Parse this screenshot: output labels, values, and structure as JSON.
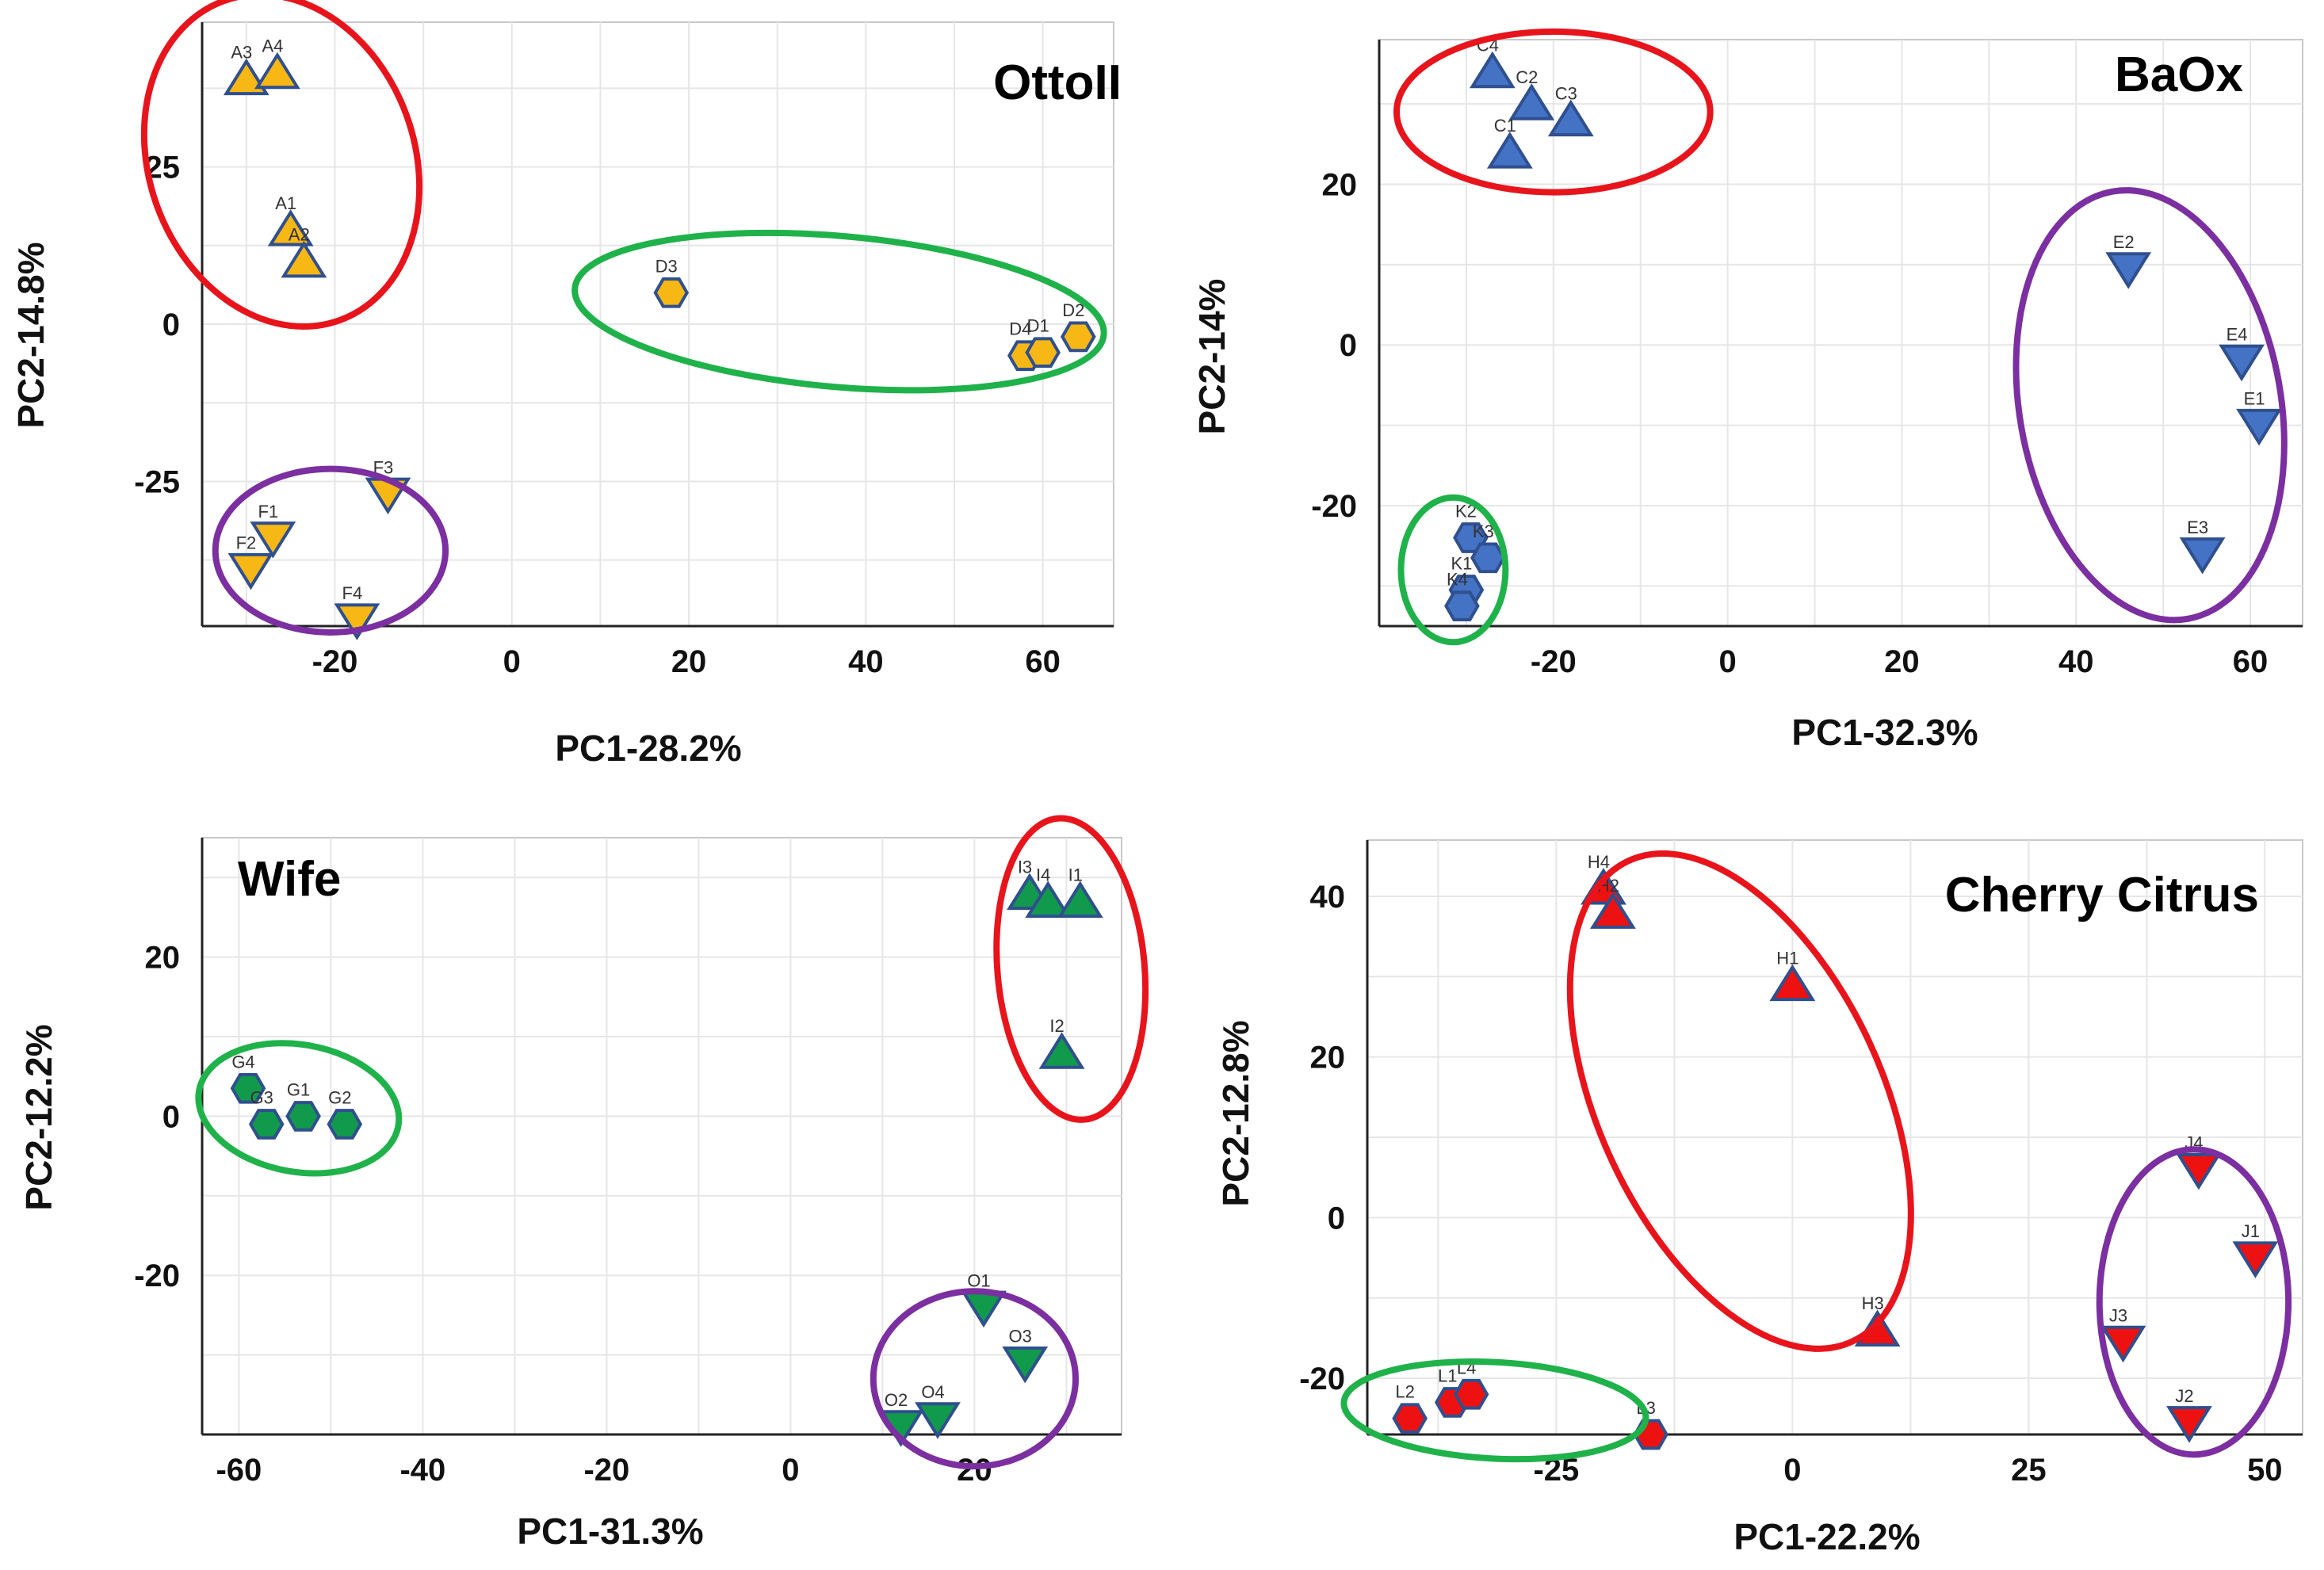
{
  "colors": {
    "red": "#e8141c",
    "green": "#20b24a",
    "purple": "#7b2fa0",
    "orange": "#f7b715",
    "blue": "#4472c4",
    "darkgreen": "#119a4c",
    "crimson": "#ee1111"
  },
  "chart_data": [
    {
      "type": "scatter",
      "title": "OttoII",
      "xlabel": "PC1-28.2%",
      "ylabel": "PC2-14.8%",
      "xlim": [
        -35,
        68
      ],
      "ylim": [
        -48,
        48
      ],
      "xticks": [
        -20,
        0,
        20,
        40,
        60
      ],
      "yticks": [
        25,
        0,
        -25
      ],
      "marker_color": "orange",
      "points": [
        {
          "label": "A3",
          "x": -30,
          "y": 39,
          "shape": "up"
        },
        {
          "label": "A4",
          "x": -26.5,
          "y": 40,
          "shape": "up"
        },
        {
          "label": "A1",
          "x": -25,
          "y": 15,
          "shape": "up"
        },
        {
          "label": "A2",
          "x": -23.5,
          "y": 10,
          "shape": "up"
        },
        {
          "label": "D3",
          "x": 18,
          "y": 5,
          "shape": "hex"
        },
        {
          "label": "D4",
          "x": 58,
          "y": -5,
          "shape": "hex"
        },
        {
          "label": "D1",
          "x": 60,
          "y": -4.5,
          "shape": "hex"
        },
        {
          "label": "D2",
          "x": 64,
          "y": -2,
          "shape": "hex"
        },
        {
          "label": "F1",
          "x": -27,
          "y": -34,
          "shape": "down"
        },
        {
          "label": "F2",
          "x": -29.5,
          "y": -39,
          "shape": "down"
        },
        {
          "label": "F3",
          "x": -14,
          "y": -27,
          "shape": "down"
        },
        {
          "label": "F4",
          "x": -17.5,
          "y": -47,
          "shape": "down"
        }
      ],
      "ellipses": [
        {
          "cx": -26,
          "cy": 26,
          "rx": 15,
          "ry": 27,
          "rot": -20,
          "color": "red"
        },
        {
          "cx": 37,
          "cy": 2,
          "rx": 30,
          "ry": 12,
          "rot": 5,
          "color": "green"
        },
        {
          "cx": -20.5,
          "cy": -36,
          "rx": 13,
          "ry": 13,
          "rot": 0,
          "color": "purple"
        }
      ]
    },
    {
      "type": "scatter",
      "title": "BaOx",
      "xlabel": "PC1-32.3%",
      "ylabel": "PC2-14%",
      "xlim": [
        -40,
        66
      ],
      "ylim": [
        -35,
        38
      ],
      "xticks": [
        -20,
        0,
        20,
        40,
        60
      ],
      "yticks": [
        20,
        0,
        -20
      ],
      "marker_color": "blue",
      "points": [
        {
          "label": "C4",
          "x": -27,
          "y": 34,
          "shape": "up"
        },
        {
          "label": "C2",
          "x": -22.5,
          "y": 30,
          "shape": "up"
        },
        {
          "label": "C3",
          "x": -18,
          "y": 28,
          "shape": "up"
        },
        {
          "label": "C1",
          "x": -25,
          "y": 24,
          "shape": "up"
        },
        {
          "label": "E2",
          "x": 46,
          "y": 9.5,
          "shape": "down"
        },
        {
          "label": "E4",
          "x": 59,
          "y": -2,
          "shape": "down"
        },
        {
          "label": "E1",
          "x": 61,
          "y": -10,
          "shape": "down"
        },
        {
          "label": "E3",
          "x": 54.5,
          "y": -26,
          "shape": "down"
        },
        {
          "label": "K2",
          "x": -29.5,
          "y": -24,
          "shape": "hex"
        },
        {
          "label": "K3",
          "x": -27.5,
          "y": -26.5,
          "shape": "hex"
        },
        {
          "label": "K1",
          "x": -30,
          "y": -30.5,
          "shape": "hex"
        },
        {
          "label": "K4",
          "x": -30.5,
          "y": -32.5,
          "shape": "hex"
        }
      ],
      "ellipses": [
        {
          "cx": -20,
          "cy": 29,
          "rx": 18,
          "ry": 10,
          "rot": 0,
          "color": "red"
        },
        {
          "cx": 48.5,
          "cy": -7.5,
          "rx": 15,
          "ry": 27,
          "rot": -10,
          "color": "purple"
        },
        {
          "cx": -31.5,
          "cy": -28,
          "rx": 6,
          "ry": 9,
          "rot": 0,
          "color": "green"
        }
      ]
    },
    {
      "type": "scatter",
      "title": "Wife",
      "xlabel": "PC1-31.3%",
      "ylabel": "PC2-12.2%",
      "xlim": [
        -64,
        36
      ],
      "ylim": [
        -40,
        35
      ],
      "xticks": [
        -60,
        -40,
        -20,
        0,
        20
      ],
      "yticks": [
        20,
        0,
        -20
      ],
      "marker_color": "darkgreen",
      "points": [
        {
          "label": "I3",
          "x": 26,
          "y": 28,
          "shape": "up"
        },
        {
          "label": "I4",
          "x": 28,
          "y": 27,
          "shape": "up"
        },
        {
          "label": "I1",
          "x": 31.5,
          "y": 27,
          "shape": "up"
        },
        {
          "label": "I2",
          "x": 29.5,
          "y": 8,
          "shape": "up"
        },
        {
          "label": "G4",
          "x": -59,
          "y": 3.5,
          "shape": "hex"
        },
        {
          "label": "G3",
          "x": -57,
          "y": -1,
          "shape": "hex"
        },
        {
          "label": "G1",
          "x": -53,
          "y": 0,
          "shape": "hex"
        },
        {
          "label": "G2",
          "x": -48.5,
          "y": -1,
          "shape": "hex"
        },
        {
          "label": "O1",
          "x": 21,
          "y": -24,
          "shape": "down"
        },
        {
          "label": "O3",
          "x": 25.5,
          "y": -31,
          "shape": "down"
        },
        {
          "label": "O2",
          "x": 12,
          "y": -39,
          "shape": "down"
        },
        {
          "label": "O4",
          "x": 16,
          "y": -38,
          "shape": "down"
        }
      ],
      "ellipses": [
        {
          "cx": 30.5,
          "cy": 18.5,
          "rx": 8,
          "ry": 19,
          "rot": -5,
          "color": "red"
        },
        {
          "cx": -53.5,
          "cy": 1,
          "rx": 11,
          "ry": 8,
          "rot": 10,
          "color": "green"
        },
        {
          "cx": 20,
          "cy": -33,
          "rx": 11,
          "ry": 11,
          "rot": 0,
          "color": "purple"
        }
      ]
    },
    {
      "type": "scatter",
      "title": "Cherry Citrus",
      "xlabel": "PC1-22.2%",
      "ylabel": "PC2-12.8%",
      "xlim": [
        -45,
        54
      ],
      "ylim": [
        -27,
        47
      ],
      "xticks": [
        -25,
        0,
        25,
        50
      ],
      "yticks": [
        40,
        20,
        0,
        -20
      ],
      "marker_color": "crimson",
      "points": [
        {
          "label": "H4",
          "x": -20,
          "y": 41,
          "shape": "up"
        },
        {
          "label": "H2",
          "x": -19,
          "y": 38,
          "shape": "up"
        },
        {
          "label": "H1",
          "x": 0,
          "y": 29,
          "shape": "up"
        },
        {
          "label": "H3",
          "x": 9,
          "y": -14,
          "shape": "up"
        },
        {
          "label": "L2",
          "x": -40.5,
          "y": -25,
          "shape": "hex"
        },
        {
          "label": "L1",
          "x": -36,
          "y": -23,
          "shape": "hex"
        },
        {
          "label": "L4",
          "x": -34,
          "y": -22,
          "shape": "hex"
        },
        {
          "label": "L3",
          "x": -15,
          "y": -27,
          "shape": "hex"
        },
        {
          "label": "J4",
          "x": 43,
          "y": 6,
          "shape": "down"
        },
        {
          "label": "J1",
          "x": 49,
          "y": -5,
          "shape": "down"
        },
        {
          "label": "J3",
          "x": 35,
          "y": -15.5,
          "shape": "down"
        },
        {
          "label": "J2",
          "x": 42,
          "y": -25.5,
          "shape": "down"
        }
      ],
      "ellipses": [
        {
          "cx": -5.5,
          "cy": 14.5,
          "rx": 15,
          "ry": 33,
          "rot": -25,
          "color": "red"
        },
        {
          "cx": -31.5,
          "cy": -24,
          "rx": 16,
          "ry": 6,
          "rot": 3,
          "color": "green"
        },
        {
          "cx": 42.5,
          "cy": -10.5,
          "rx": 10,
          "ry": 19,
          "rot": 0,
          "color": "purple"
        }
      ]
    }
  ]
}
